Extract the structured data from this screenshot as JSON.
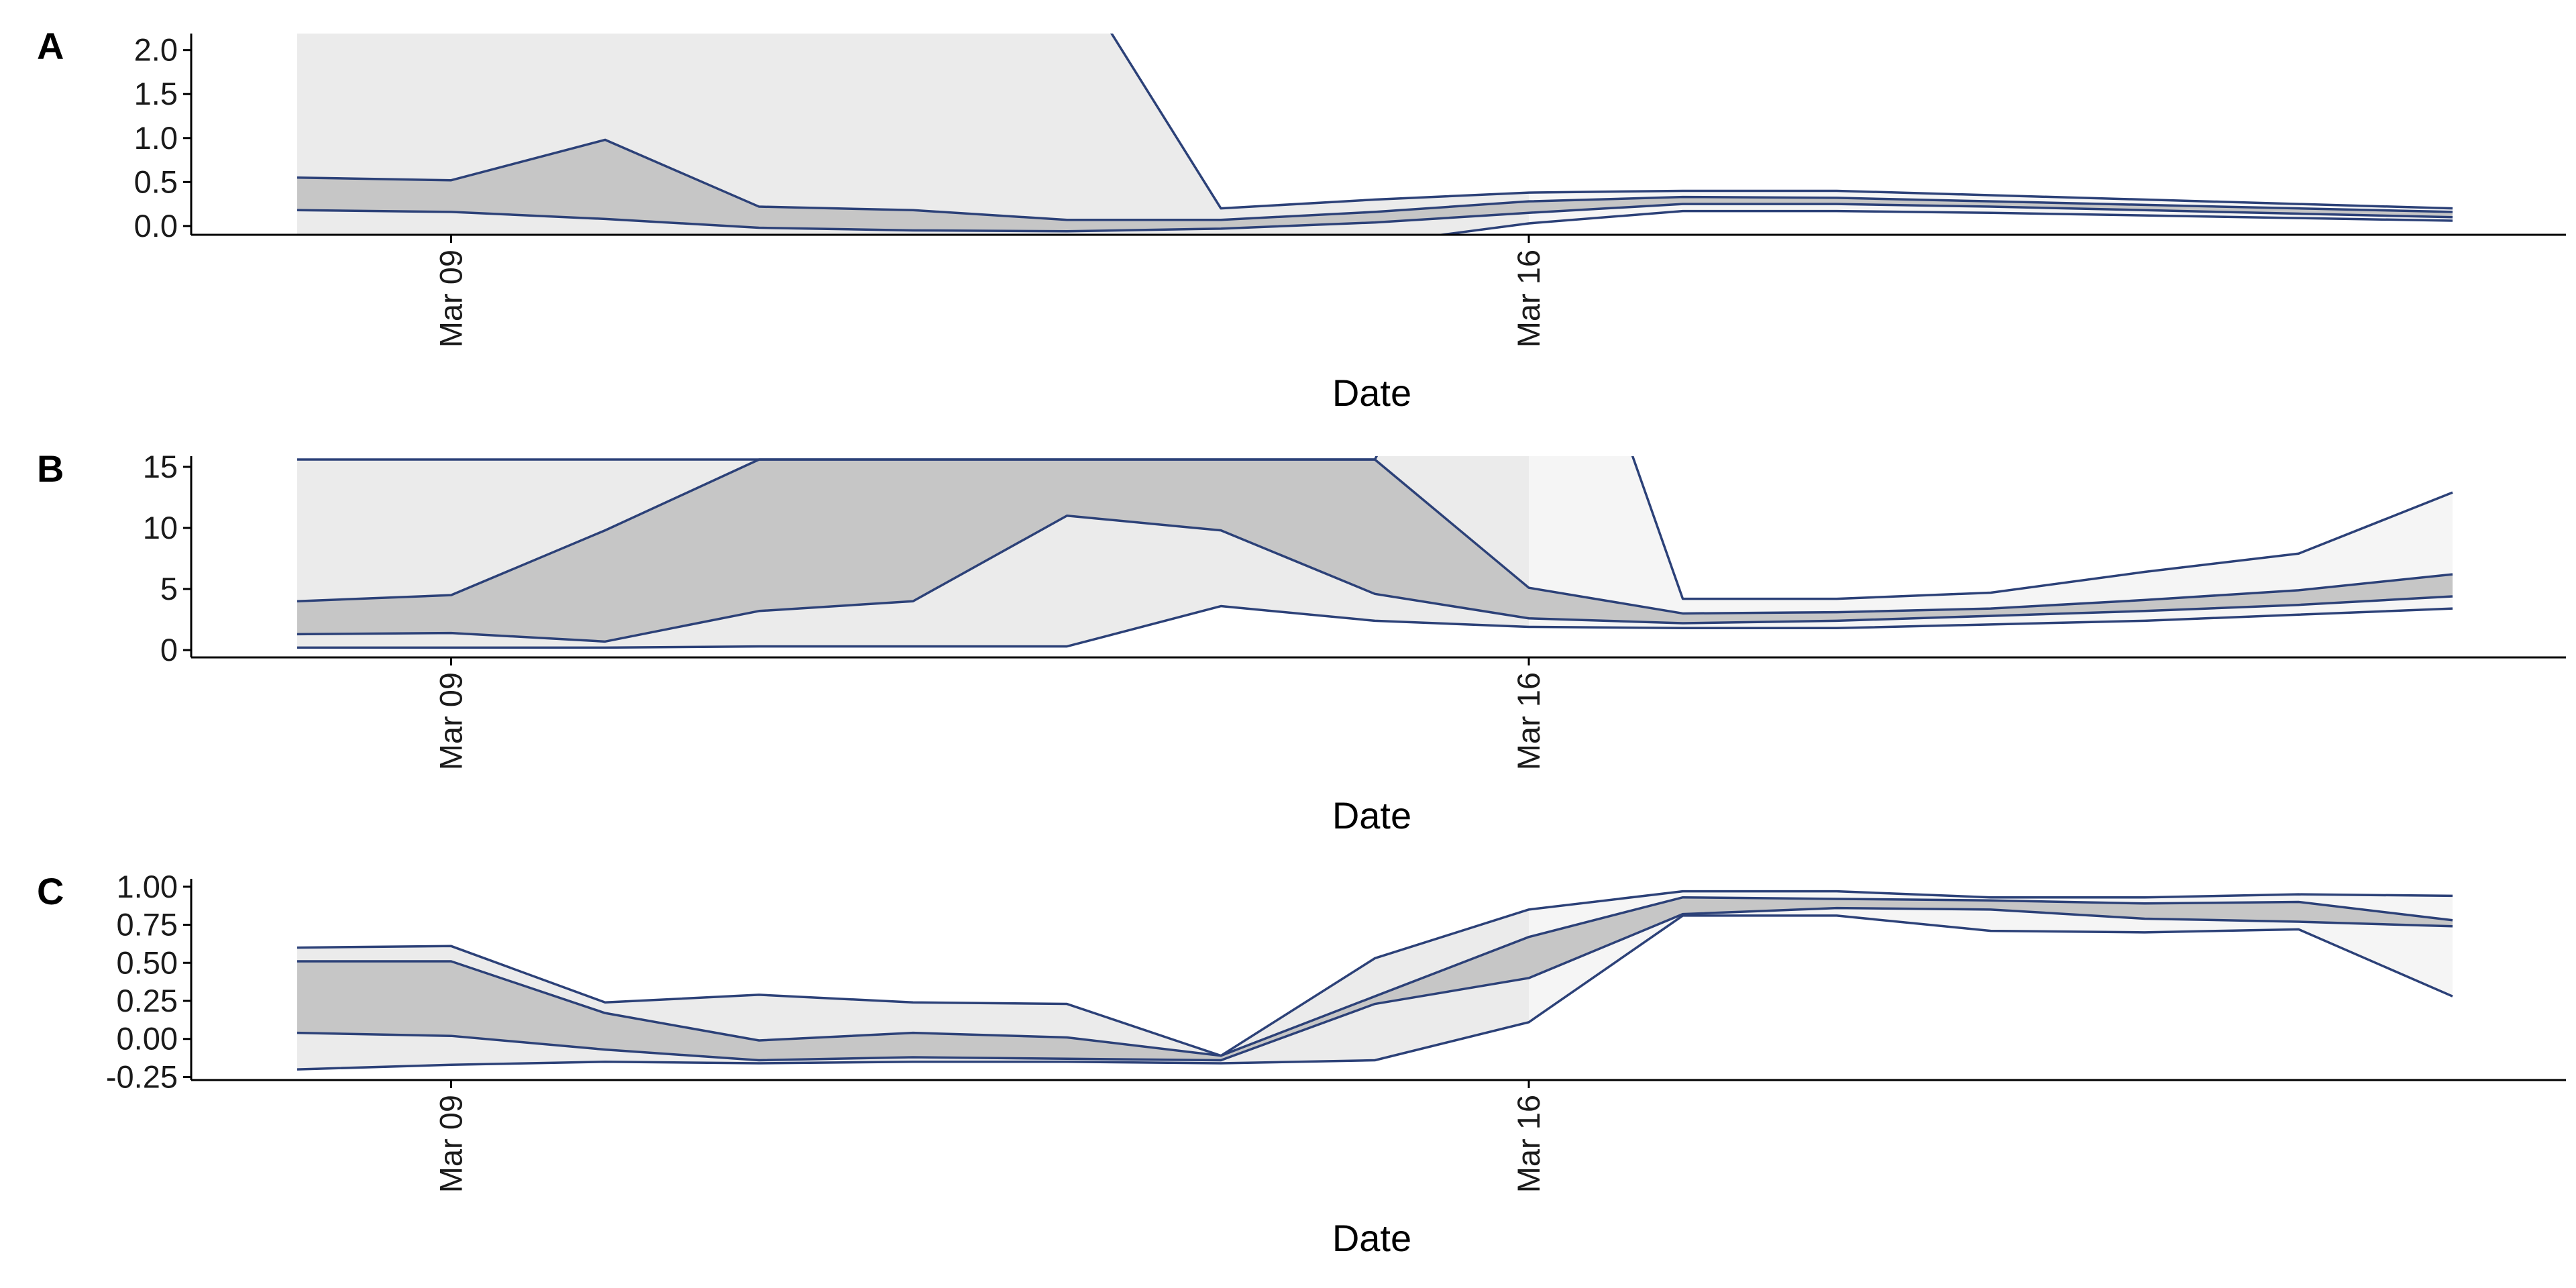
{
  "colors": {
    "line": "#2c4178",
    "band_outer": "#ebebeb",
    "band_inner": "#c6c6c6",
    "band_late": "#f5f5f5",
    "axis": "#000000"
  },
  "chart_data": [
    {
      "panel": "A",
      "type": "area",
      "xlabel": "Date",
      "ylabel": "",
      "x_ticks": [
        {
          "date": "2020-03-09",
          "label": "Mar 09"
        },
        {
          "date": "2020-03-16",
          "label": "Mar 16"
        }
      ],
      "y_ticks": [
        0.0,
        0.5,
        1.0,
        1.5,
        2.0
      ],
      "y_tick_labels": [
        "0.0",
        "0.5",
        "1.0",
        "1.5",
        "2.0"
      ],
      "ylim": [
        -0.1,
        2.15
      ],
      "dates": [
        "2020-03-08",
        "2020-03-09",
        "2020-03-10",
        "2020-03-11",
        "2020-03-12",
        "2020-03-13",
        "2020-03-14",
        "2020-03-15",
        "2020-03-16",
        "2020-03-17",
        "2020-03-18",
        "2020-03-19",
        "2020-03-20",
        "2020-03-21",
        "2020-03-22"
      ],
      "upper_outer": [
        3.0,
        3.0,
        3.0,
        3.0,
        3.0,
        3.0,
        0.2,
        0.3,
        0.38,
        0.4,
        0.4,
        0.35,
        0.3,
        0.25,
        0.2
      ],
      "upper_inner": [
        0.55,
        0.52,
        0.98,
        0.22,
        0.18,
        0.07,
        0.07,
        0.16,
        0.28,
        0.33,
        0.32,
        0.28,
        0.24,
        0.2,
        0.16
      ],
      "lower_inner": [
        0.18,
        0.16,
        0.08,
        -0.02,
        -0.05,
        -0.06,
        -0.03,
        0.04,
        0.15,
        0.25,
        0.25,
        0.22,
        0.18,
        0.14,
        0.1
      ],
      "lower_outer": [
        -0.5,
        -0.5,
        -0.5,
        -0.5,
        -0.5,
        -0.5,
        -0.3,
        -0.2,
        0.03,
        0.17,
        0.17,
        0.15,
        0.12,
        0.09,
        0.06
      ]
    },
    {
      "panel": "B",
      "type": "area",
      "xlabel": "Date",
      "ylabel": "",
      "x_ticks": [
        {
          "date": "2020-03-09",
          "label": "Mar 09"
        },
        {
          "date": "2020-03-16",
          "label": "Mar 16"
        }
      ],
      "y_ticks": [
        0,
        5,
        10,
        15
      ],
      "y_tick_labels": [
        "0",
        "5",
        "10",
        "15"
      ],
      "ylim": [
        -0.6,
        15.6
      ],
      "dates": [
        "2020-03-08",
        "2020-03-09",
        "2020-03-10",
        "2020-03-11",
        "2020-03-12",
        "2020-03-13",
        "2020-03-14",
        "2020-03-15",
        "2020-03-16",
        "2020-03-17",
        "2020-03-18",
        "2020-03-19",
        "2020-03-20",
        "2020-03-21",
        "2020-03-22"
      ],
      "upper_outer": [
        15.6,
        15.6,
        15.6,
        15.6,
        15.6,
        15.6,
        15.6,
        15.6,
        40,
        4.2,
        4.2,
        4.7,
        6.4,
        7.9,
        12.9
      ],
      "upper_inner": [
        4.0,
        4.5,
        9.8,
        15.6,
        15.6,
        15.6,
        15.6,
        15.6,
        5.1,
        3.0,
        3.1,
        3.4,
        4.1,
        4.9,
        6.2
      ],
      "lower_inner": [
        1.3,
        1.4,
        0.7,
        3.2,
        4.0,
        11.0,
        9.8,
        4.6,
        2.6,
        2.2,
        2.4,
        2.8,
        3.2,
        3.7,
        4.4
      ],
      "lower_outer": [
        0.2,
        0.2,
        0.2,
        0.3,
        0.3,
        0.3,
        3.6,
        2.4,
        1.9,
        1.8,
        1.8,
        2.1,
        2.4,
        2.9,
        3.4
      ]
    },
    {
      "panel": "C",
      "type": "area",
      "xlabel": "Date",
      "ylabel": "",
      "x_ticks": [
        {
          "date": "2020-03-09",
          "label": "Mar 09"
        },
        {
          "date": "2020-03-16",
          "label": "Mar 16"
        }
      ],
      "y_ticks": [
        -0.25,
        0.0,
        0.25,
        0.5,
        0.75,
        1.0
      ],
      "y_tick_labels": [
        "-0.25",
        "0.00",
        "0.25",
        "0.50",
        "0.75",
        "1.00"
      ],
      "ylim": [
        -0.27,
        1.03
      ],
      "dates": [
        "2020-03-08",
        "2020-03-09",
        "2020-03-10",
        "2020-03-11",
        "2020-03-12",
        "2020-03-13",
        "2020-03-14",
        "2020-03-15",
        "2020-03-16",
        "2020-03-17",
        "2020-03-18",
        "2020-03-19",
        "2020-03-20",
        "2020-03-21",
        "2020-03-22"
      ],
      "upper_outer": [
        0.6,
        0.61,
        0.24,
        0.29,
        0.24,
        0.23,
        -0.11,
        0.53,
        0.85,
        0.97,
        0.97,
        0.93,
        0.93,
        0.95,
        0.94
      ],
      "upper_inner": [
        0.51,
        0.51,
        0.17,
        -0.01,
        0.04,
        0.01,
        -0.11,
        0.28,
        0.67,
        0.93,
        0.92,
        0.91,
        0.89,
        0.9,
        0.78
      ],
      "lower_inner": [
        0.04,
        0.02,
        -0.07,
        -0.14,
        -0.12,
        -0.13,
        -0.14,
        0.23,
        0.4,
        0.82,
        0.86,
        0.85,
        0.79,
        0.77,
        0.74
      ],
      "lower_outer": [
        -0.2,
        -0.17,
        -0.15,
        -0.16,
        -0.15,
        -0.15,
        -0.16,
        -0.14,
        0.11,
        0.81,
        0.81,
        0.71,
        0.7,
        0.72,
        0.28
      ]
    }
  ]
}
